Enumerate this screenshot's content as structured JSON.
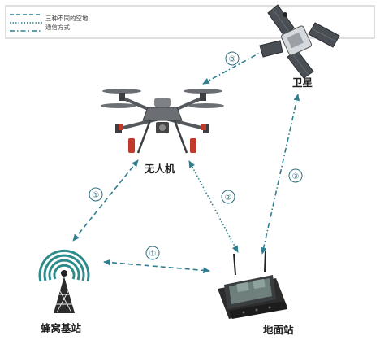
{
  "legend": {
    "line1": "三种不同的空地",
    "line2": "通信方式"
  },
  "nodes": {
    "satellite": "卫星",
    "drone": "无人机",
    "cell_tower": "蜂窝基站",
    "ground_station": "地面站"
  },
  "links": {
    "drone_tower": "①",
    "tower_ground": "①",
    "drone_ground": "②",
    "drone_satellite": "③",
    "satellite_ground": "③"
  },
  "colors": {
    "link": "#2f7f8f",
    "drone_body": "#6b6f73",
    "drone_accent": "#c0392b",
    "satellite_panel": "#4a4f55",
    "tower": "#2e8b8b"
  }
}
